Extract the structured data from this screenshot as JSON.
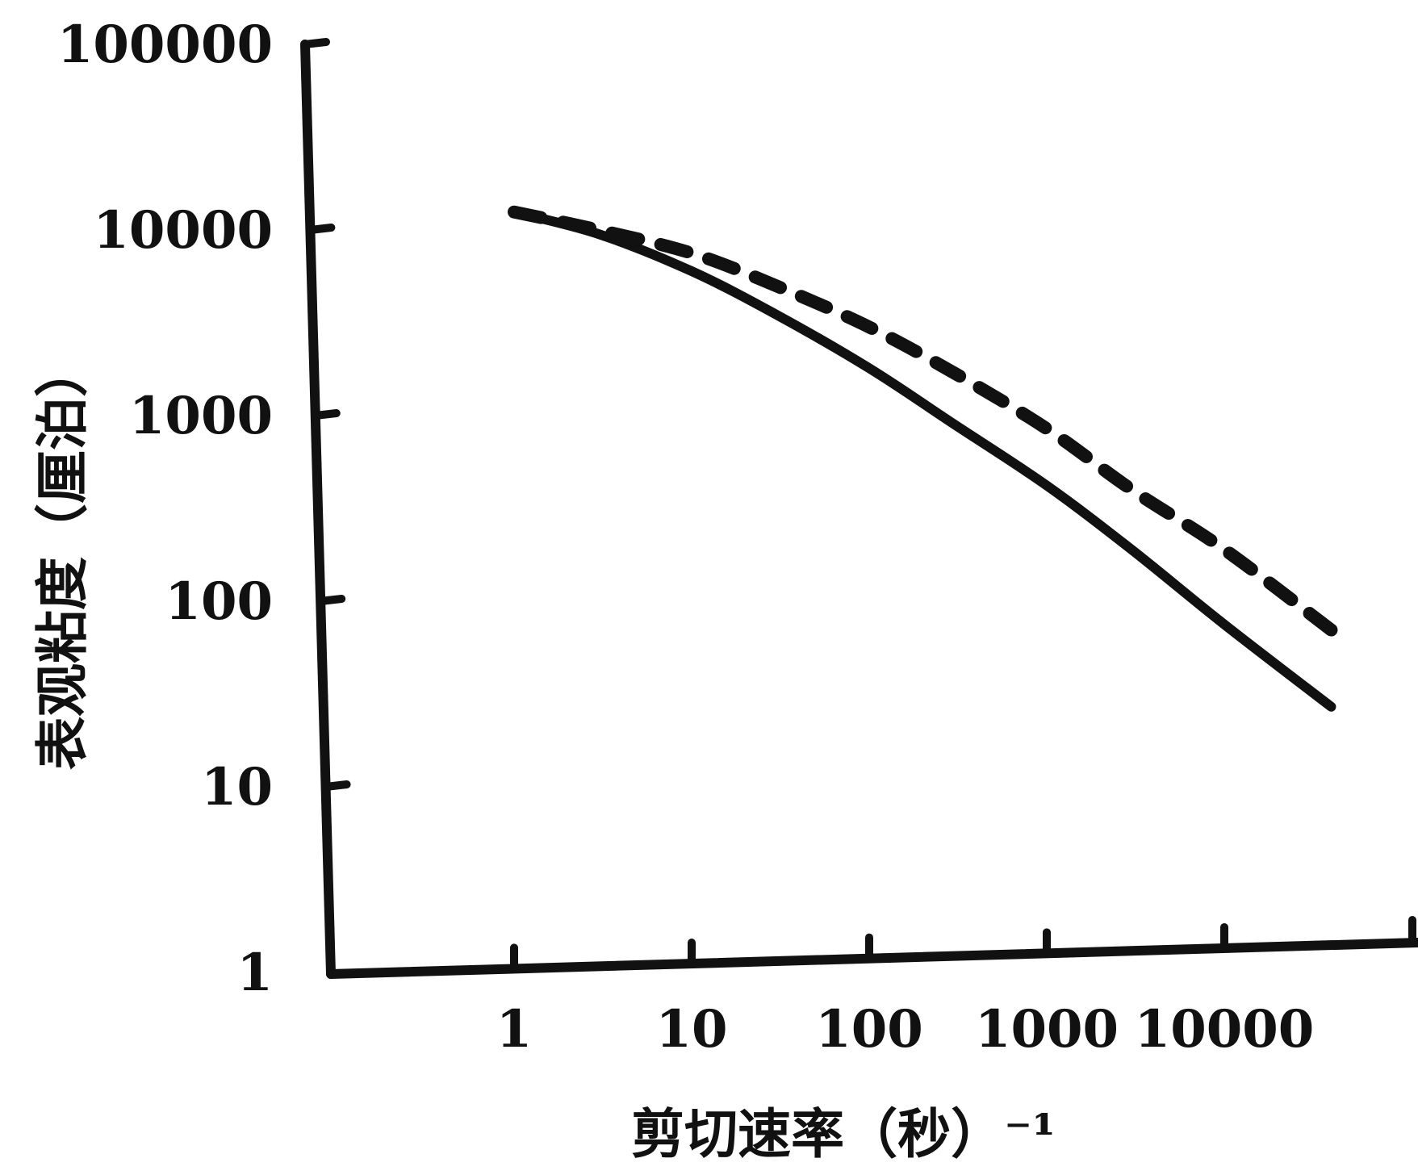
{
  "chart_data": {
    "type": "line",
    "title": "",
    "xlabel": "剪切速率（秒）⁻¹",
    "ylabel": "表观粘度（厘泊）",
    "x_scale": "log",
    "y_scale": "log",
    "xlim": [
      1,
      100000
    ],
    "ylim": [
      1,
      100000
    ],
    "x_ticks": [
      "1",
      "10",
      "100",
      "1000",
      "10000"
    ],
    "y_ticks": [
      "1",
      "10",
      "100",
      "1000",
      "10000",
      "100000"
    ],
    "grid": false,
    "legend": "none",
    "series": [
      {
        "style": "solid",
        "color": "#111111",
        "points": [
          {
            "x": 1,
            "y": 12500
          },
          {
            "x": 3,
            "y": 9500
          },
          {
            "x": 10,
            "y": 6000
          },
          {
            "x": 30,
            "y": 3500
          },
          {
            "x": 100,
            "y": 1800
          },
          {
            "x": 300,
            "y": 900
          },
          {
            "x": 1000,
            "y": 420
          },
          {
            "x": 3000,
            "y": 190
          },
          {
            "x": 10000,
            "y": 75
          },
          {
            "x": 40000,
            "y": 27
          }
        ]
      },
      {
        "style": "dashed",
        "color": "#111111",
        "points": [
          {
            "x": 1,
            "y": 12500
          },
          {
            "x": 3,
            "y": 10000
          },
          {
            "x": 10,
            "y": 7500
          },
          {
            "x": 30,
            "y": 5000
          },
          {
            "x": 100,
            "y": 3000
          },
          {
            "x": 300,
            "y": 1700
          },
          {
            "x": 1000,
            "y": 850
          },
          {
            "x": 3000,
            "y": 400
          },
          {
            "x": 10000,
            "y": 190
          },
          {
            "x": 40000,
            "y": 70
          }
        ]
      }
    ]
  }
}
